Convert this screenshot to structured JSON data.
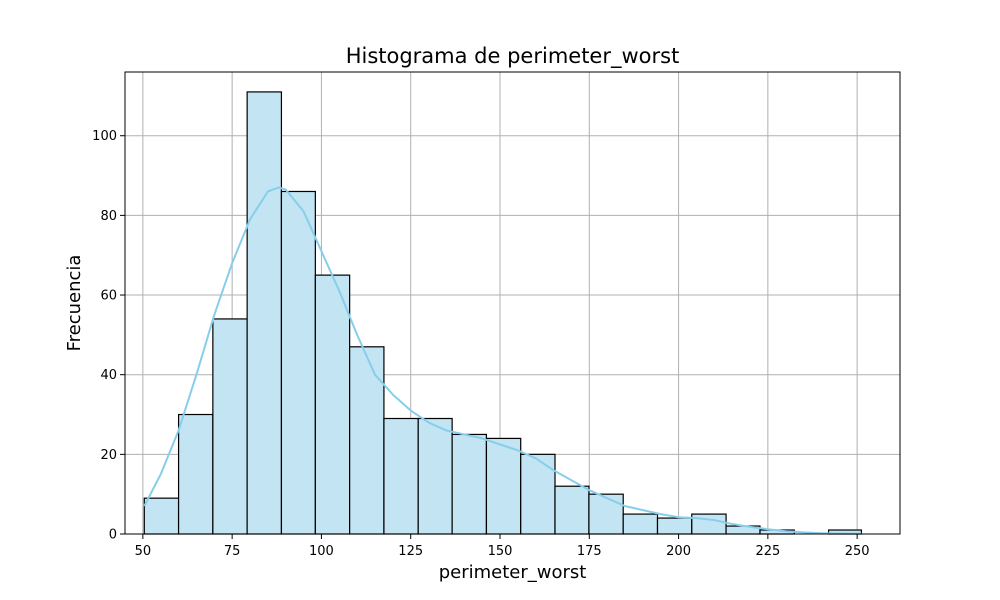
{
  "chart_data": {
    "type": "bar",
    "title": "Histograma de perimeter_worst",
    "xlabel": "perimeter_worst",
    "ylabel": "Frecuencia",
    "xlim": [
      45,
      262
    ],
    "ylim": [
      0,
      116
    ],
    "xticks": [
      50,
      75,
      100,
      125,
      150,
      175,
      200,
      225,
      250
    ],
    "yticks": [
      0,
      20,
      40,
      60,
      80,
      100
    ],
    "grid": true,
    "bins": [
      {
        "x0": 50.4,
        "x1": 60.0,
        "count": 9
      },
      {
        "x0": 60.0,
        "x1": 69.6,
        "count": 30
      },
      {
        "x0": 69.6,
        "x1": 79.2,
        "count": 54
      },
      {
        "x0": 79.2,
        "x1": 88.8,
        "count": 111
      },
      {
        "x0": 88.8,
        "x1": 98.3,
        "count": 86
      },
      {
        "x0": 98.3,
        "x1": 107.9,
        "count": 65
      },
      {
        "x0": 107.9,
        "x1": 117.5,
        "count": 47
      },
      {
        "x0": 117.5,
        "x1": 127.1,
        "count": 29
      },
      {
        "x0": 127.1,
        "x1": 136.6,
        "count": 29
      },
      {
        "x0": 136.6,
        "x1": 146.2,
        "count": 25
      },
      {
        "x0": 146.2,
        "x1": 155.8,
        "count": 24
      },
      {
        "x0": 155.8,
        "x1": 165.4,
        "count": 20
      },
      {
        "x0": 165.4,
        "x1": 174.9,
        "count": 12
      },
      {
        "x0": 174.9,
        "x1": 184.5,
        "count": 10
      },
      {
        "x0": 184.5,
        "x1": 194.1,
        "count": 5
      },
      {
        "x0": 194.1,
        "x1": 203.7,
        "count": 4
      },
      {
        "x0": 203.7,
        "x1": 213.3,
        "count": 5
      },
      {
        "x0": 213.3,
        "x1": 222.8,
        "count": 2
      },
      {
        "x0": 222.8,
        "x1": 232.4,
        "count": 1
      },
      {
        "x0": 232.4,
        "x1": 242.0,
        "count": 0
      },
      {
        "x0": 242.0,
        "x1": 251.2,
        "count": 1
      }
    ],
    "kde": {
      "x": [
        50.4,
        55,
        60,
        65,
        70,
        75,
        80,
        85,
        88,
        90,
        95,
        100,
        105,
        110,
        115,
        120,
        125,
        130,
        135,
        140,
        145,
        150,
        155,
        160,
        165,
        170,
        175,
        180,
        185,
        190,
        195,
        200,
        205,
        210,
        215,
        220,
        225,
        230,
        235,
        240,
        245,
        251.2
      ],
      "y": [
        7,
        15,
        26,
        40,
        55,
        68,
        79,
        86,
        87,
        86.5,
        81,
        71,
        61,
        50,
        40,
        35,
        31,
        28,
        26,
        25,
        24,
        22.5,
        21,
        19,
        16,
        13.5,
        11,
        9,
        7,
        6,
        5,
        4.2,
        4,
        3.5,
        2.5,
        1.8,
        1.2,
        0.7,
        0.4,
        0.2,
        0.1,
        0.05
      ]
    },
    "colors": {
      "bar_fill": "#c2e4f3",
      "bar_edge": "#000000",
      "kde_line": "#87ceeb",
      "grid": "#b0b0b0"
    }
  }
}
